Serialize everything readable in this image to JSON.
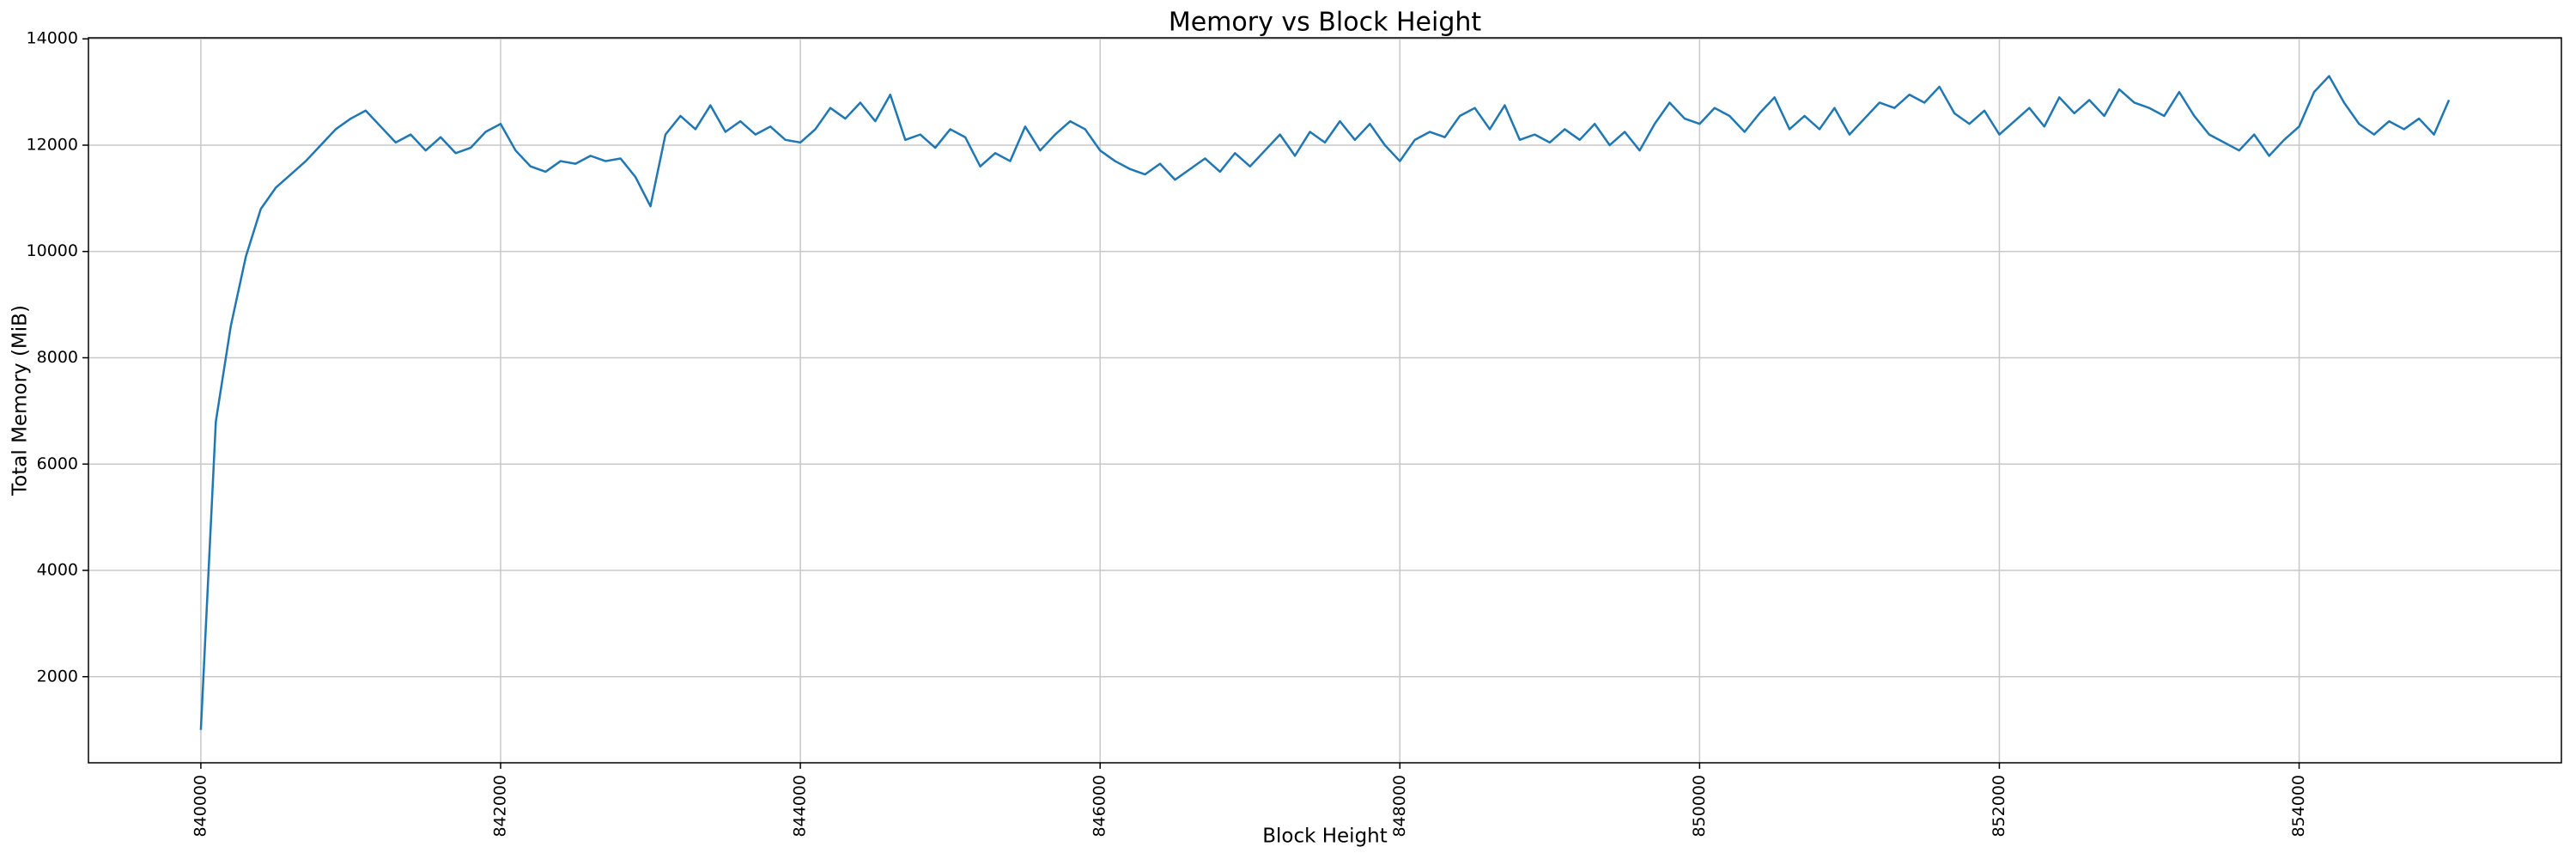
{
  "chart_data": {
    "type": "line",
    "title": "Memory vs Block Height",
    "xlabel": "Block Height",
    "ylabel": "Total Memory (MiB)",
    "color": "#1f77b4",
    "grid": true,
    "xlim": [
      839250,
      855750
    ],
    "xticks": [
      840000,
      842000,
      844000,
      846000,
      848000,
      850000,
      852000,
      854000
    ],
    "ylim": [
      380,
      14020
    ],
    "yticks": [
      2000,
      4000,
      6000,
      8000,
      10000,
      12000,
      14000
    ],
    "x": [
      840000,
      840100,
      840200,
      840300,
      840400,
      840500,
      840600,
      840700,
      840800,
      840900,
      841000,
      841100,
      841200,
      841300,
      841400,
      841500,
      841600,
      841700,
      841800,
      841900,
      842000,
      842100,
      842200,
      842300,
      842400,
      842500,
      842600,
      842700,
      842800,
      842900,
      843000,
      843100,
      843200,
      843300,
      843400,
      843500,
      843600,
      843700,
      843800,
      843900,
      844000,
      844100,
      844200,
      844300,
      844400,
      844500,
      844600,
      844700,
      844800,
      844900,
      845000,
      845100,
      845200,
      845300,
      845400,
      845500,
      845600,
      845700,
      845800,
      845900,
      846000,
      846100,
      846200,
      846300,
      846400,
      846500,
      846600,
      846700,
      846800,
      846900,
      847000,
      847100,
      847200,
      847300,
      847400,
      847500,
      847600,
      847700,
      847800,
      847900,
      848000,
      848100,
      848200,
      848300,
      848400,
      848500,
      848600,
      848700,
      848800,
      848900,
      849000,
      849100,
      849200,
      849300,
      849400,
      849500,
      849600,
      849700,
      849800,
      849900,
      850000,
      850100,
      850200,
      850300,
      850400,
      850500,
      850600,
      850700,
      850800,
      850900,
      851000,
      851100,
      851200,
      851300,
      851400,
      851500,
      851600,
      851700,
      851800,
      851900,
      852000,
      852100,
      852200,
      852300,
      852400,
      852500,
      852600,
      852700,
      852800,
      852900,
      853000,
      853100,
      853200,
      853300,
      853400,
      853500,
      853600,
      853700,
      853800,
      853900,
      854000,
      854100,
      854200,
      854300,
      854400,
      854500,
      854600,
      854700,
      854800,
      854900,
      855000
    ],
    "values": [
      1000,
      6800,
      8600,
      9900,
      10800,
      11200,
      11450,
      11700,
      12000,
      12300,
      12500,
      12650,
      12350,
      12050,
      12200,
      11900,
      12150,
      11850,
      11950,
      12250,
      12400,
      11900,
      11600,
      11500,
      11700,
      11650,
      11800,
      11700,
      11750,
      11400,
      10850,
      12200,
      12550,
      12300,
      12750,
      12250,
      12450,
      12200,
      12350,
      12100,
      12050,
      12300,
      12700,
      12500,
      12800,
      12450,
      12950,
      12100,
      12200,
      11950,
      12300,
      12150,
      11600,
      11850,
      11700,
      12350,
      11900,
      12200,
      12450,
      12300,
      11900,
      11700,
      11550,
      11450,
      11650,
      11350,
      11550,
      11750,
      11500,
      11850,
      11600,
      11900,
      12200,
      11800,
      12250,
      12050,
      12450,
      12100,
      12400,
      12000,
      11700,
      12100,
      12250,
      12150,
      12550,
      12700,
      12300,
      12750,
      12100,
      12200,
      12050,
      12300,
      12100,
      12400,
      12000,
      12250,
      11900,
      12400,
      12800,
      12500,
      12400,
      12700,
      12550,
      12250,
      12600,
      12900,
      12300,
      12550,
      12300,
      12700,
      12200,
      12500,
      12800,
      12700,
      12950,
      12800,
      13100,
      12600,
      12400,
      12650,
      12200,
      12450,
      12700,
      12350,
      12900,
      12600,
      12850,
      12550,
      13050,
      12800,
      12700,
      12550,
      13000,
      12550,
      12200,
      12050,
      11900,
      12200,
      11800,
      12100,
      12350,
      13000,
      13300,
      12800,
      12400,
      12200,
      12450,
      12300,
      12500,
      12200,
      12850
    ]
  }
}
